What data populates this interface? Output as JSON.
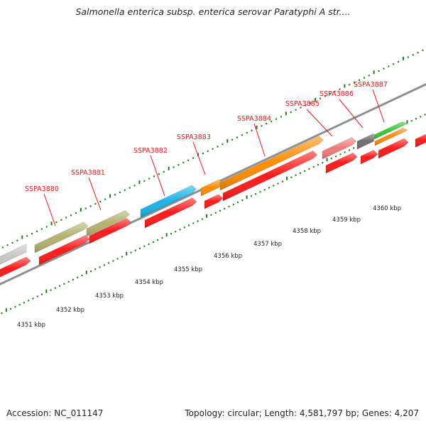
{
  "title": "Salmonella enterica subsp. enterica serovar Paratyphi A str....",
  "footer": {
    "accession": "Accession: NC_011147",
    "topology": "Topology: circular; Length: 4,581,797 bp; Genes: 4,207"
  },
  "colors": {
    "backbone": "#8f8f8f",
    "reverse_strand": "#ff1a1a",
    "tick": "#1f7a1f",
    "label": "#e8141c"
  },
  "scale_labels": [
    "4351 kbp",
    "4352 kbp",
    "4353 kbp",
    "4354 kbp",
    "4355 kbp",
    "4356 kbp",
    "4357 kbp",
    "4358 kbp",
    "4359 kbp",
    "4360 kbp"
  ],
  "genes": [
    {
      "label": "",
      "color": "#c8c8c8"
    },
    {
      "label": "SSPA3880",
      "color": "#b5b16e"
    },
    {
      "label": "SSPA3881",
      "color": "#b5b16e"
    },
    {
      "label": "SSPA3882",
      "color": "#18b5ea"
    },
    {
      "label": "SSPA3883",
      "color": "#ff8c00"
    },
    {
      "label": "SSPA3884",
      "color": "#ff8c00"
    },
    {
      "label": "SSPA3885",
      "color": "#f07a7a"
    },
    {
      "label": "SSPA3886",
      "color": "#6e6e6e"
    },
    {
      "label": "SSPA3887",
      "color": "#33cc33"
    },
    {
      "label": "",
      "color": "#ff8c00"
    },
    {
      "label": "",
      "color": "#ff1a1a"
    }
  ]
}
